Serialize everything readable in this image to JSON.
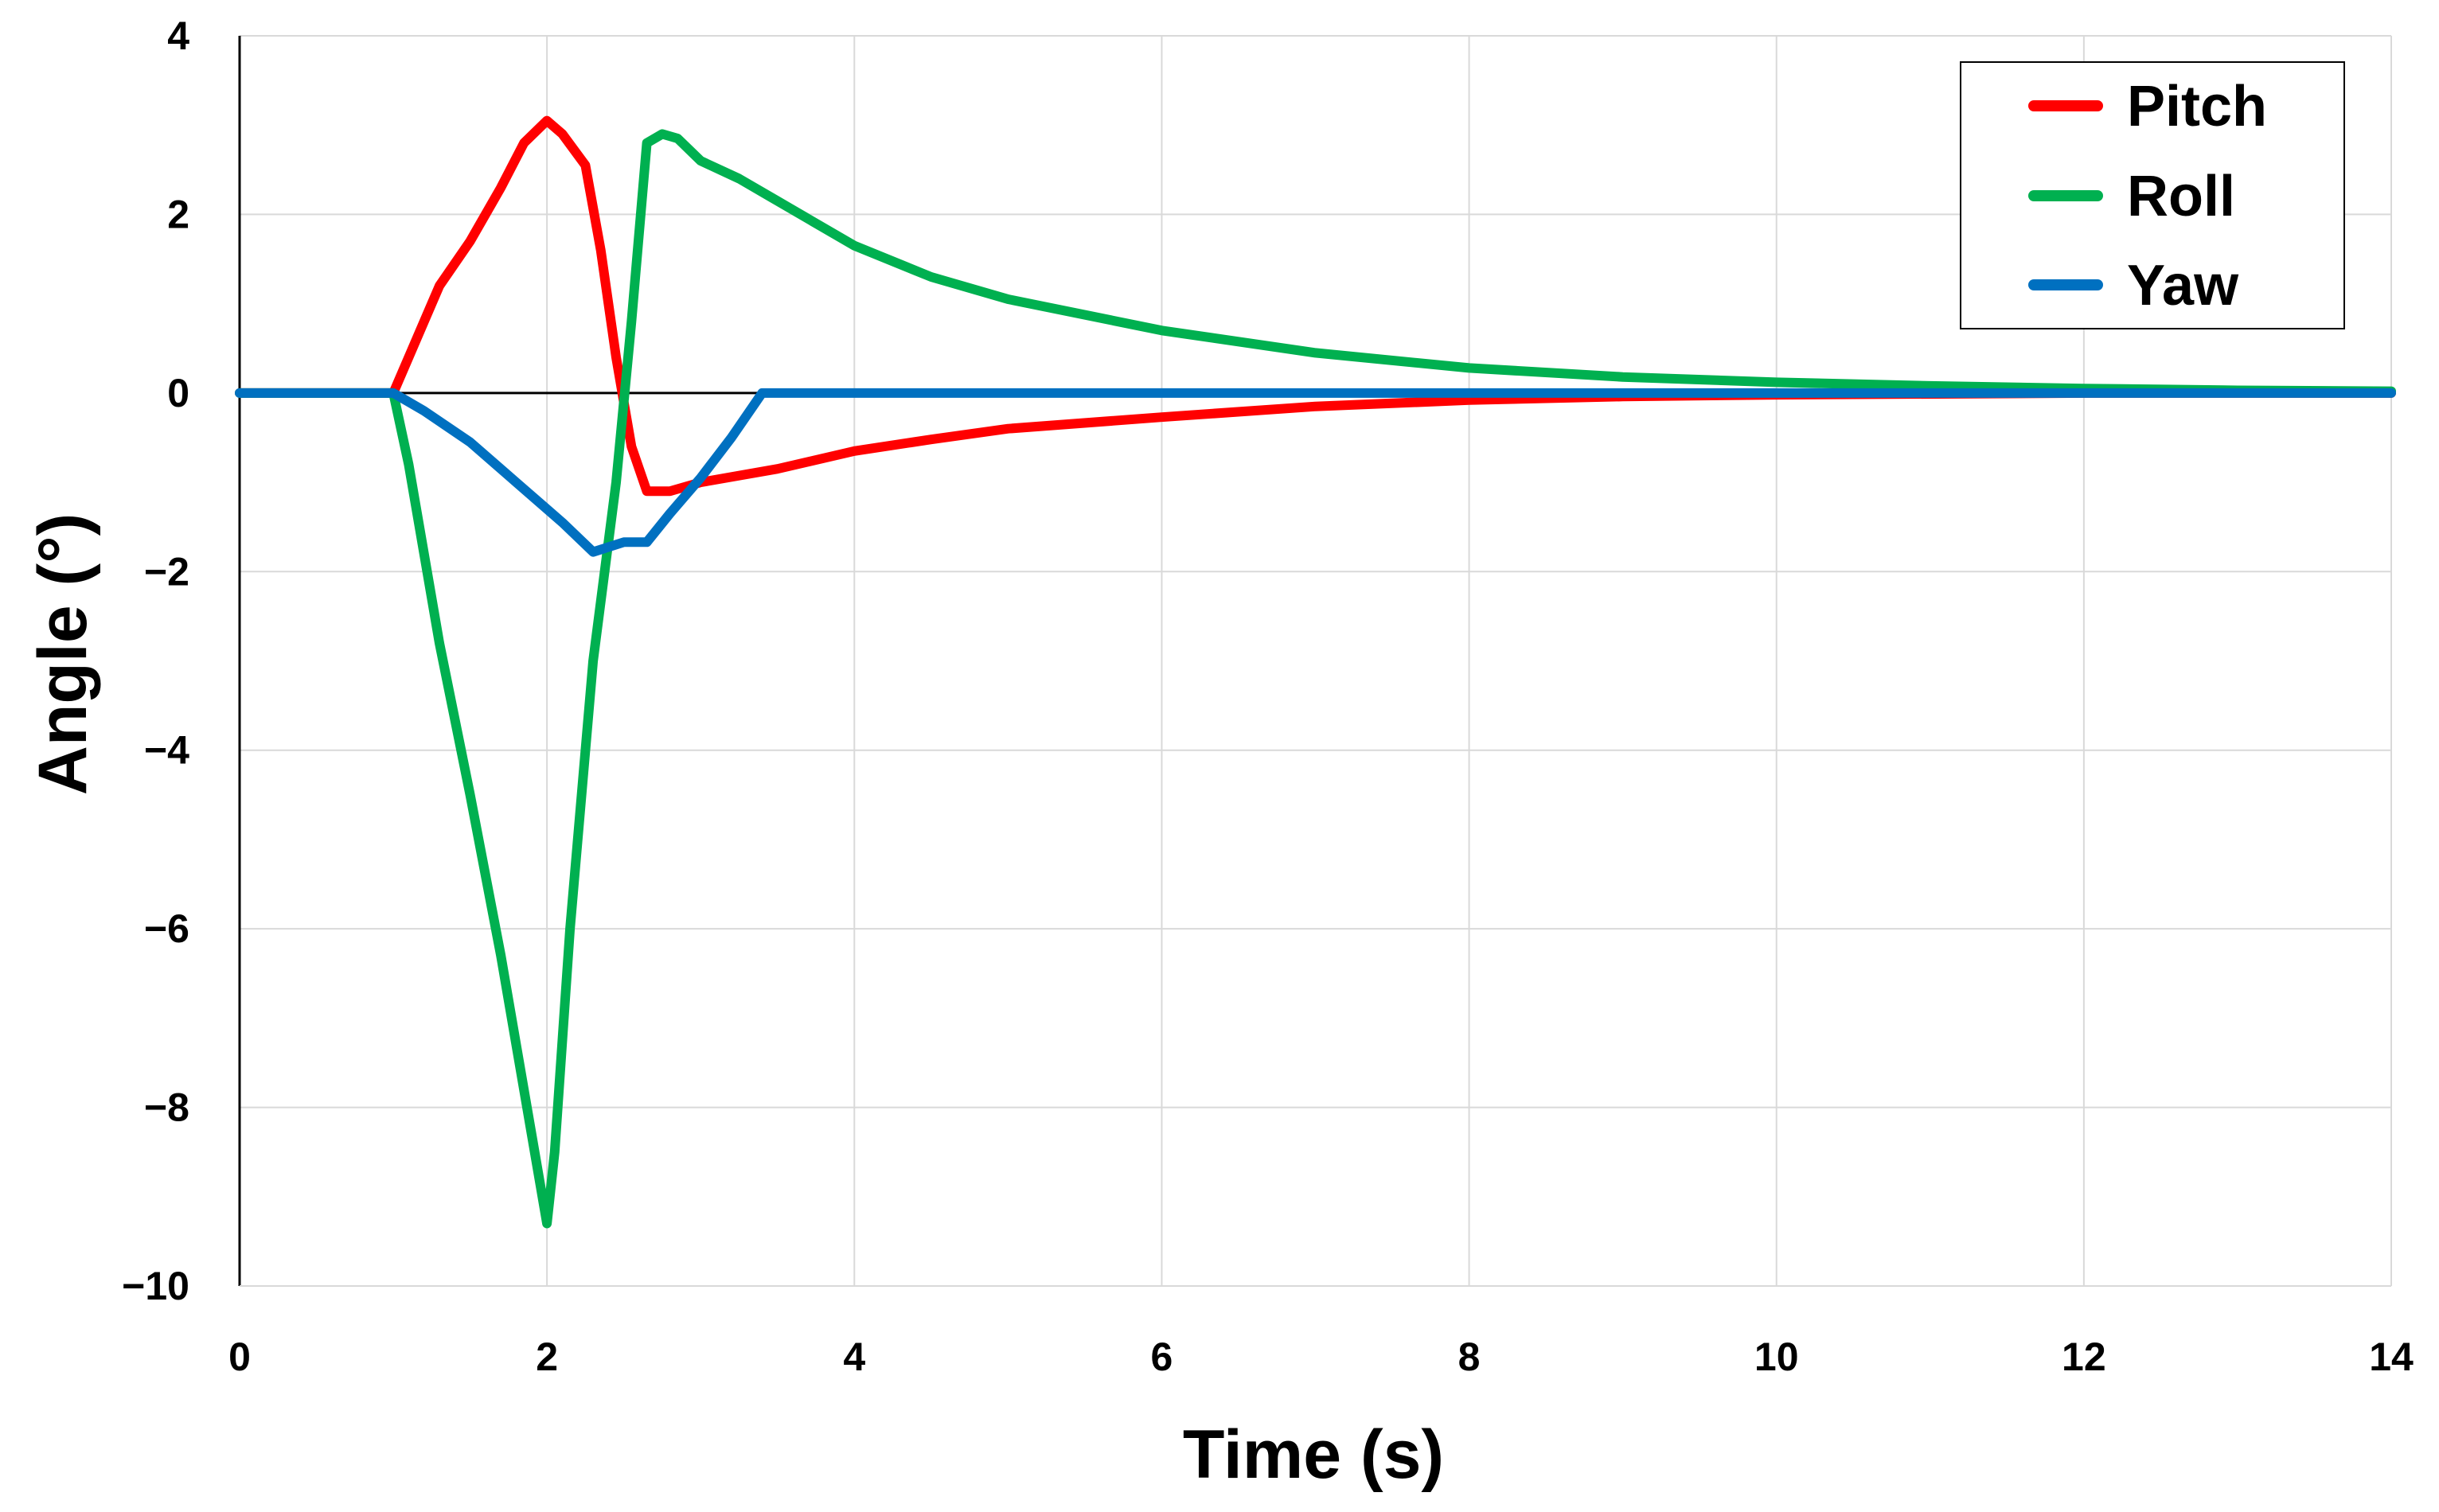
{
  "chart_data": {
    "type": "line",
    "title": "",
    "xlabel": "Time (s)",
    "ylabel": "Angle (°)",
    "xlim": [
      0,
      14
    ],
    "ylim": [
      -10,
      4
    ],
    "xticks": [
      0,
      2,
      4,
      6,
      8,
      10,
      12,
      14
    ],
    "yticks": [
      4,
      2,
      0,
      -2,
      -4,
      -6,
      -8,
      -10
    ],
    "ytick_labels": [
      "4",
      "2",
      "0",
      "−2",
      "−4",
      "−6",
      "−8",
      "−10"
    ],
    "grid": true,
    "legend_position": "top-right",
    "series": [
      {
        "name": "Pitch",
        "color": "#ff0000",
        "points": [
          [
            0,
            0
          ],
          [
            1,
            0
          ],
          [
            1.1,
            0.4
          ],
          [
            1.3,
            1.2
          ],
          [
            1.5,
            1.7
          ],
          [
            1.7,
            2.3
          ],
          [
            1.85,
            2.8
          ],
          [
            2.0,
            3.05
          ],
          [
            2.1,
            2.9
          ],
          [
            2.25,
            2.55
          ],
          [
            2.35,
            1.6
          ],
          [
            2.45,
            0.4
          ],
          [
            2.55,
            -0.6
          ],
          [
            2.65,
            -1.1
          ],
          [
            2.8,
            -1.1
          ],
          [
            3.0,
            -1.0
          ],
          [
            3.5,
            -0.85
          ],
          [
            4.0,
            -0.65
          ],
          [
            4.5,
            -0.52
          ],
          [
            5.0,
            -0.4
          ],
          [
            6.0,
            -0.27
          ],
          [
            7.0,
            -0.15
          ],
          [
            8.0,
            -0.08
          ],
          [
            9.0,
            -0.04
          ],
          [
            10.0,
            -0.02
          ],
          [
            12.0,
            0
          ],
          [
            14.0,
            0
          ]
        ]
      },
      {
        "name": "Roll",
        "color": "#00b050",
        "points": [
          [
            0,
            0
          ],
          [
            1,
            0
          ],
          [
            1.1,
            -0.8
          ],
          [
            1.3,
            -2.8
          ],
          [
            1.5,
            -4.5
          ],
          [
            1.7,
            -6.3
          ],
          [
            1.9,
            -8.3
          ],
          [
            2.0,
            -9.3
          ],
          [
            2.05,
            -8.5
          ],
          [
            2.15,
            -6.0
          ],
          [
            2.3,
            -3.0
          ],
          [
            2.45,
            -1.0
          ],
          [
            2.55,
            0.8
          ],
          [
            2.65,
            2.8
          ],
          [
            2.75,
            2.9
          ],
          [
            2.85,
            2.85
          ],
          [
            3.0,
            2.6
          ],
          [
            3.25,
            2.4
          ],
          [
            3.5,
            2.15
          ],
          [
            4.0,
            1.65
          ],
          [
            4.5,
            1.3
          ],
          [
            5.0,
            1.05
          ],
          [
            6.0,
            0.7
          ],
          [
            7.0,
            0.45
          ],
          [
            8.0,
            0.28
          ],
          [
            9.0,
            0.18
          ],
          [
            10.0,
            0.12
          ],
          [
            11.0,
            0.08
          ],
          [
            12.0,
            0.05
          ],
          [
            13.0,
            0.03
          ],
          [
            14.0,
            0.02
          ]
        ]
      },
      {
        "name": "Yaw",
        "color": "#0070c0",
        "points": [
          [
            0,
            0
          ],
          [
            1,
            0
          ],
          [
            1.2,
            -0.2
          ],
          [
            1.5,
            -0.55
          ],
          [
            1.8,
            -1.0
          ],
          [
            2.1,
            -1.45
          ],
          [
            2.3,
            -1.78
          ],
          [
            2.5,
            -1.67
          ],
          [
            2.65,
            -1.67
          ],
          [
            2.8,
            -1.35
          ],
          [
            3.0,
            -0.95
          ],
          [
            3.2,
            -0.5
          ],
          [
            3.4,
            0
          ],
          [
            4.0,
            0
          ],
          [
            6.0,
            0
          ],
          [
            8.0,
            0
          ],
          [
            10.0,
            0
          ],
          [
            12.0,
            0
          ],
          [
            14.0,
            0
          ]
        ]
      }
    ]
  }
}
